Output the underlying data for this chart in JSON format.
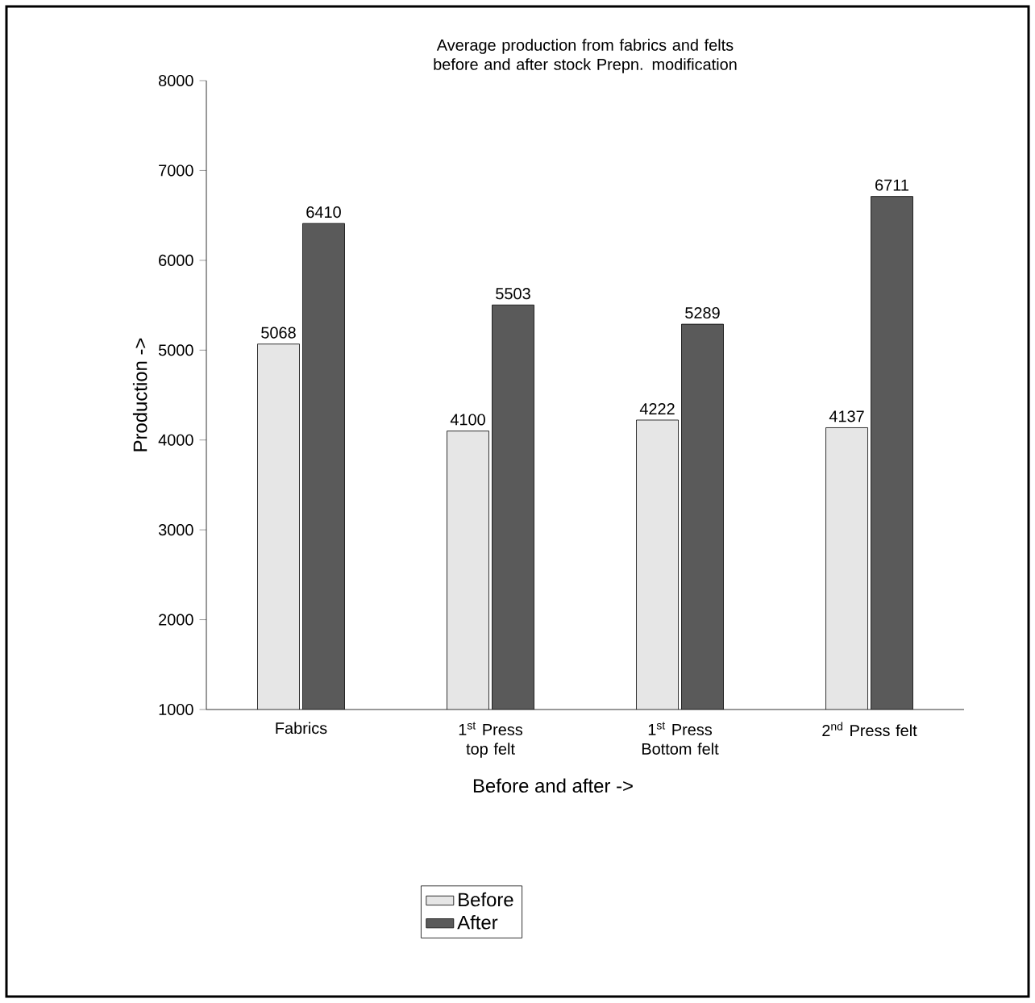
{
  "chart_data": {
    "type": "bar",
    "title": "Average production from fabrics and felts before and after stock Prepn. modification",
    "xlabel": "Before and after ->",
    "ylabel": "Production ->",
    "categories": [
      "Fabrics",
      "1$^{st}$ Press top felt",
      "1$^{st}$ Press Bottom felt",
      "2$^{nd}$ Press felt"
    ],
    "series": [
      {
        "name": "Before",
        "color": "#e6e6e6",
        "values": [
          5068,
          4100,
          4222,
          4137
        ]
      },
      {
        "name": "After",
        "color": "#5a5a5a",
        "values": [
          6410,
          5503,
          5289,
          6711
        ]
      }
    ],
    "ylim": [
      1000,
      8000
    ],
    "yticks": [
      1000,
      2000,
      3000,
      4000,
      5000,
      6000,
      7000,
      8000
    ],
    "data_labels": true,
    "grid": false,
    "legend": "bottom"
  }
}
